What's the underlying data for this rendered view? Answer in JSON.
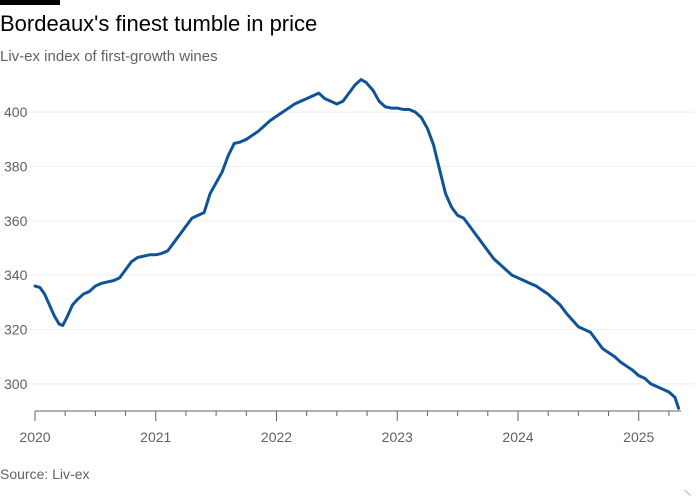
{
  "title": "Bordeaux's finest tumble in price",
  "subtitle": "Liv-ex index of first-growth wines",
  "source": "Source: Liv-ex",
  "colors": {
    "line": "#0f5499",
    "grid": "#eeeeee",
    "axis": "#66605c",
    "text": "#66605c",
    "brand_bar": "#000000"
  },
  "chart_data": {
    "type": "line",
    "title": "Bordeaux's finest tumble in price",
    "subtitle": "Liv-ex index of first-growth wines",
    "xlabel": "",
    "ylabel": "",
    "ylim": [
      290,
      410
    ],
    "xlim": [
      2020.0,
      2025.35
    ],
    "y_ticks": [
      "300",
      "320",
      "340",
      "360",
      "380",
      "400"
    ],
    "x_ticks": [
      "2020",
      "2021",
      "2022",
      "2023",
      "2024",
      "2025"
    ],
    "grid": "horizontal",
    "legend": "none",
    "series": [
      {
        "color": "#0f5499",
        "x": [
          2020.0,
          2020.04,
          2020.08,
          2020.12,
          2020.16,
          2020.2,
          2020.23,
          2020.27,
          2020.31,
          2020.35,
          2020.4,
          2020.45,
          2020.5,
          2020.55,
          2020.6,
          2020.65,
          2020.7,
          2020.75,
          2020.8,
          2020.85,
          2020.9,
          2020.95,
          2021.0,
          2021.05,
          2021.1,
          2021.15,
          2021.2,
          2021.25,
          2021.3,
          2021.35,
          2021.4,
          2021.45,
          2021.5,
          2021.55,
          2021.6,
          2021.65,
          2021.7,
          2021.75,
          2021.8,
          2021.85,
          2021.9,
          2021.95,
          2022.0,
          2022.05,
          2022.1,
          2022.15,
          2022.2,
          2022.25,
          2022.3,
          2022.35,
          2022.4,
          2022.45,
          2022.5,
          2022.55,
          2022.6,
          2022.65,
          2022.7,
          2022.74,
          2022.8,
          2022.85,
          2022.9,
          2022.95,
          2023.0,
          2023.05,
          2023.1,
          2023.15,
          2023.2,
          2023.25,
          2023.3,
          2023.35,
          2023.4,
          2023.45,
          2023.5,
          2023.55,
          2023.6,
          2023.65,
          2023.7,
          2023.75,
          2023.8,
          2023.85,
          2023.9,
          2023.95,
          2024.0,
          2024.05,
          2024.1,
          2024.15,
          2024.2,
          2024.25,
          2024.3,
          2024.35,
          2024.4,
          2024.45,
          2024.5,
          2024.55,
          2024.6,
          2024.65,
          2024.7,
          2024.75,
          2024.8,
          2024.85,
          2024.9,
          2024.95,
          2025.0,
          2025.05,
          2025.1,
          2025.15,
          2025.2,
          2025.25,
          2025.3,
          2025.33
        ],
        "values": [
          336,
          335.5,
          333,
          329,
          325,
          322,
          321.5,
          325,
          329,
          331,
          333,
          334,
          336,
          337,
          337.5,
          338,
          339,
          342,
          345,
          346.5,
          347,
          347.5,
          347.5,
          348,
          349,
          352,
          355,
          358,
          361,
          362,
          363,
          370,
          374,
          378,
          384,
          388.5,
          389,
          390,
          391.5,
          393,
          395,
          397,
          398.5,
          400,
          401.5,
          403,
          404,
          405,
          406,
          407,
          405,
          404,
          403,
          404,
          407,
          410,
          412,
          411,
          408,
          404,
          402,
          401.5,
          401.5,
          401,
          401,
          400,
          398,
          394,
          388,
          379,
          370,
          365,
          362,
          361,
          358,
          355,
          352,
          349,
          346,
          344,
          342,
          340,
          339,
          338,
          337,
          336,
          334.5,
          333,
          331,
          329,
          326,
          323.5,
          321,
          320,
          319,
          316,
          313,
          311.5,
          310,
          308,
          306.5,
          305,
          303,
          302,
          300,
          299,
          298,
          297,
          295,
          291
        ]
      }
    ]
  }
}
